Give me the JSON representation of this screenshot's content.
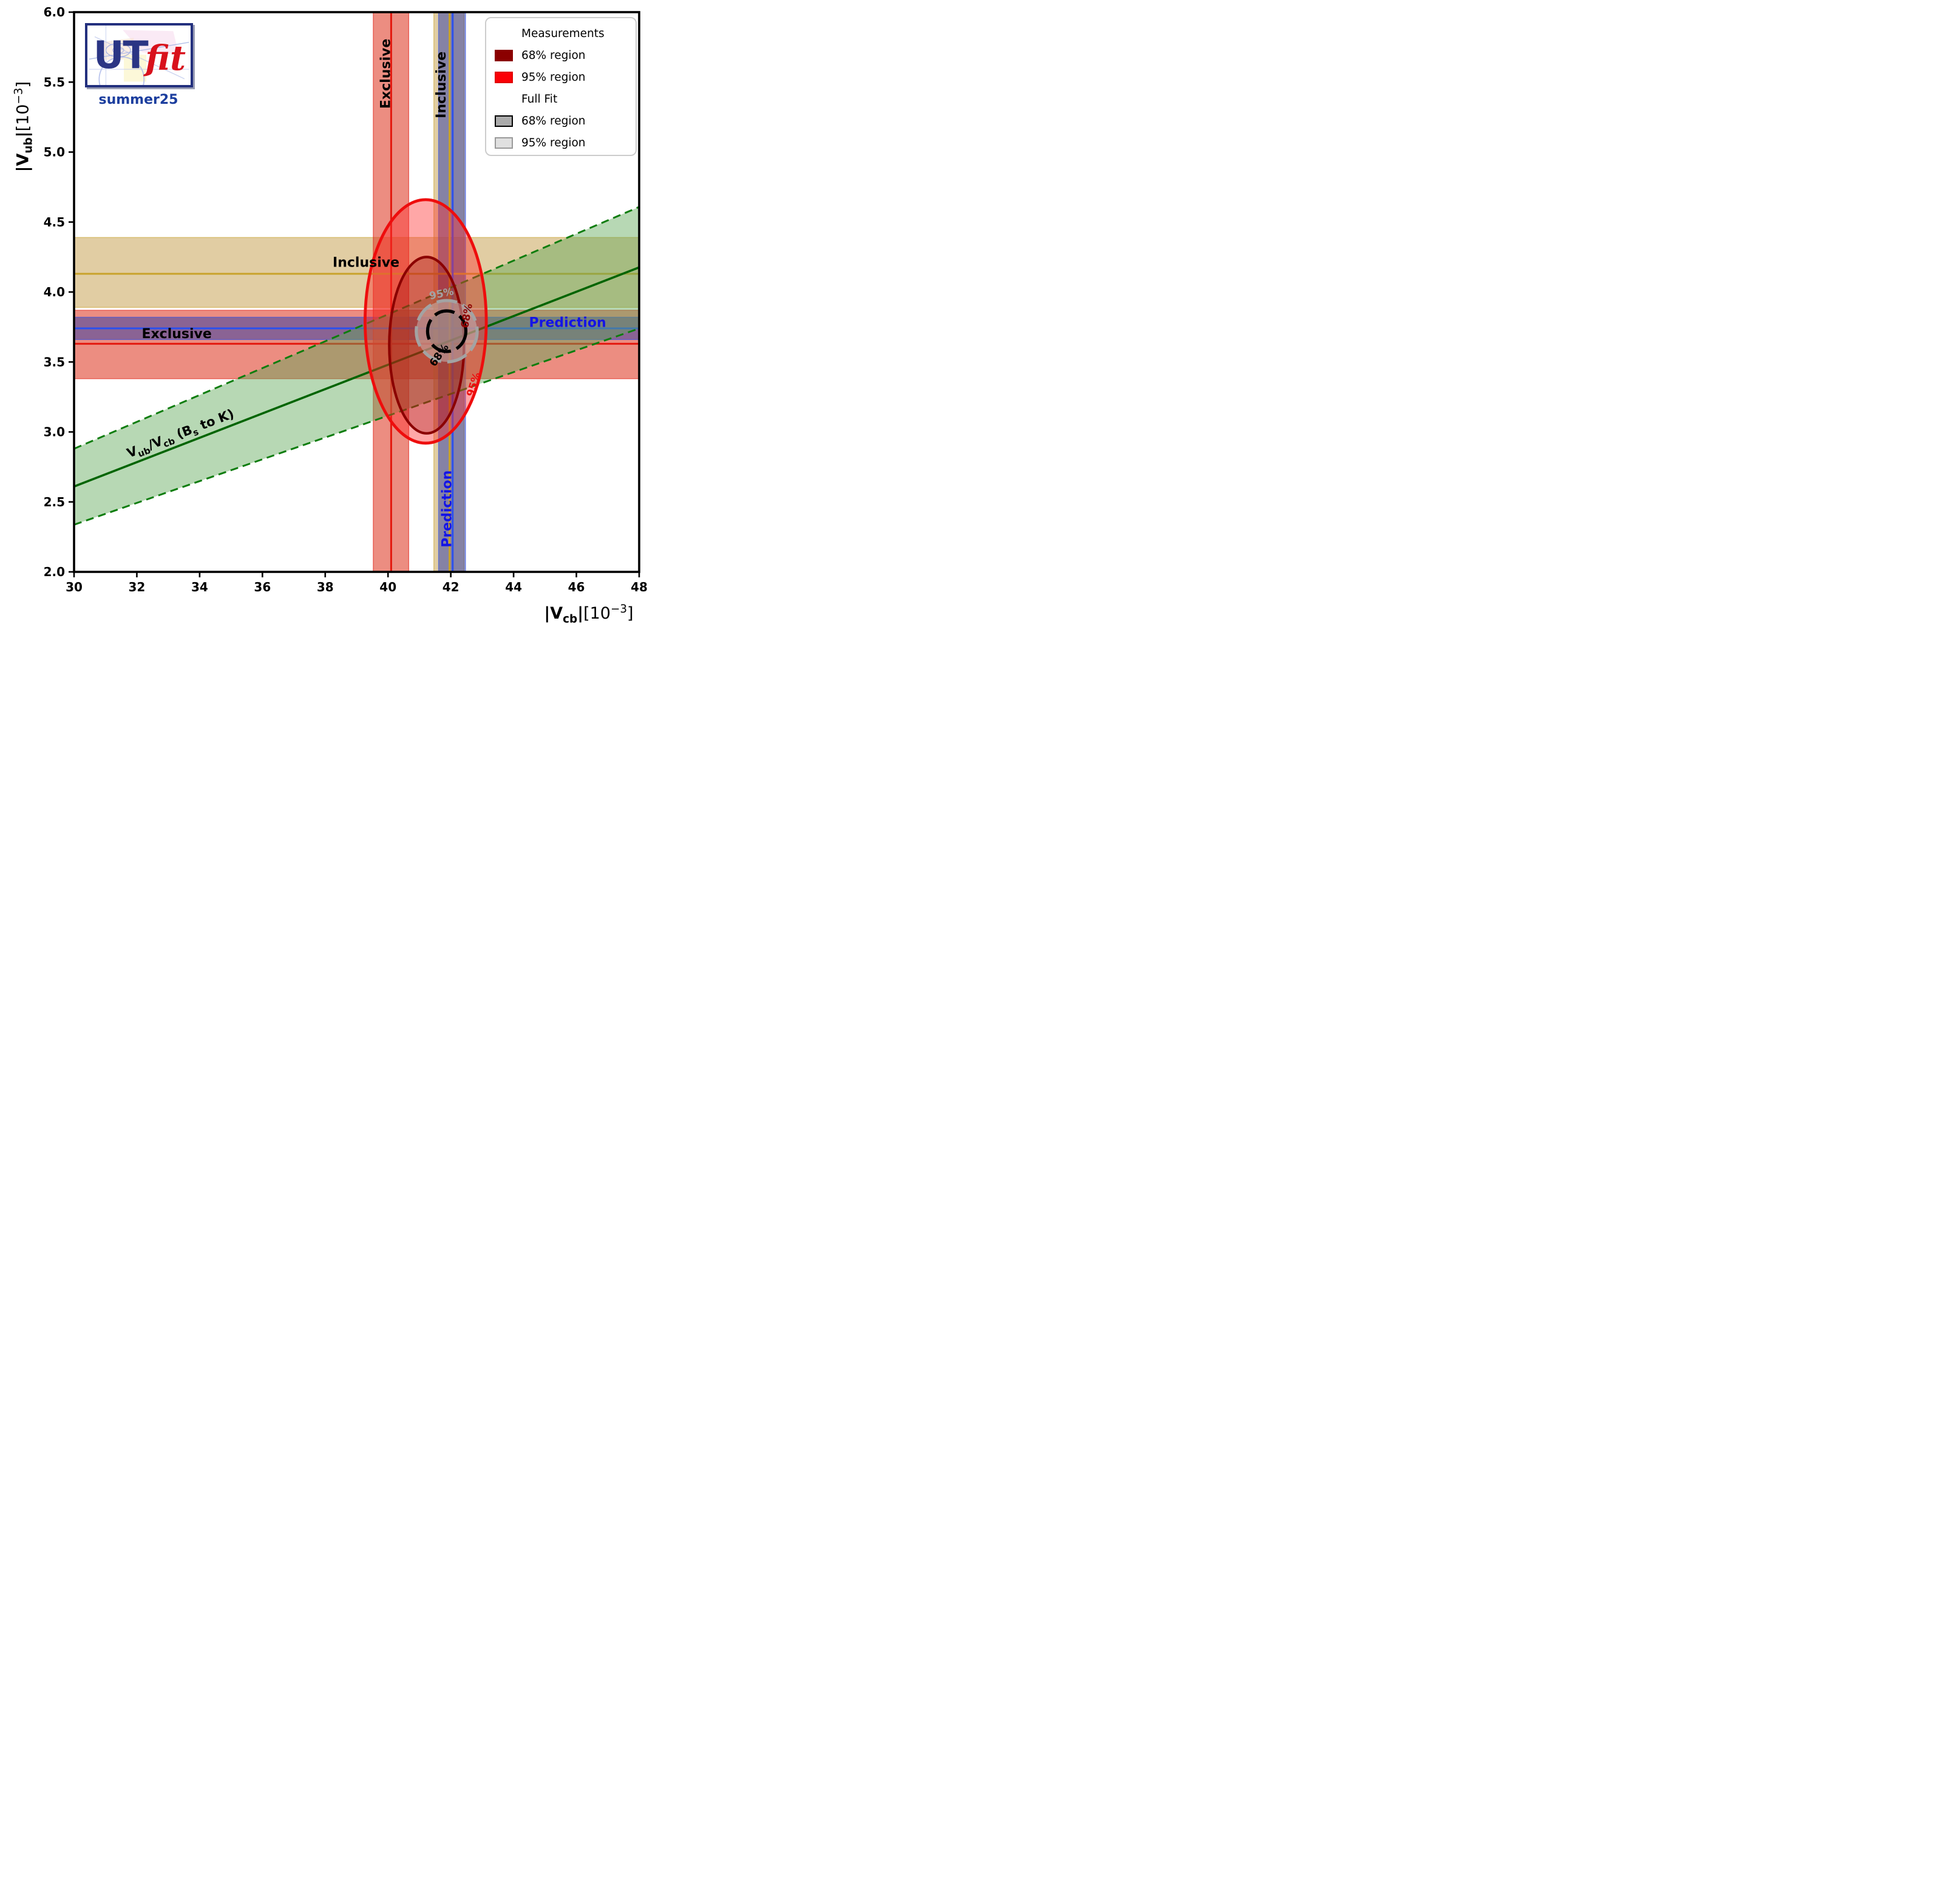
{
  "branding": {
    "logo_ut": "UT",
    "logo_fit": "fit",
    "edition": "summer25"
  },
  "legend": {
    "sections": [
      {
        "title": "Measurements",
        "items": [
          {
            "label": "68% region",
            "fill": "#8b0000",
            "border": "#8b0000"
          },
          {
            "label": "95% region",
            "fill": "#fb0006",
            "border": "#e00000"
          }
        ]
      },
      {
        "title": "Full Fit",
        "items": [
          {
            "label": "68% region",
            "fill": "#ababab",
            "border": "#000000"
          },
          {
            "label": "95% region",
            "fill": "#e0e0e0",
            "border": "#9a9a9a"
          }
        ]
      }
    ]
  },
  "x_axis_label": {
    "bar1": "|",
    "v": "V",
    "sub": "cb",
    "bar2": "|",
    "bracket": "[10",
    "sup": "−3",
    "close": "]"
  },
  "y_axis_label": {
    "bar1": "|",
    "v": "V",
    "sub": "ub",
    "bar2": "|",
    "bracket": "[10",
    "sup": "−3",
    "close": "]"
  },
  "chart_data": {
    "type": "area",
    "description": "2D confidence regions in the |Vcb|-|Vub| plane (UTfit summer25): measurement bands, ratio band and fit contours",
    "xlabel": "|Vcb|[10^-3]",
    "ylabel": "|Vub|[10^-3]",
    "x_range": [
      30,
      48
    ],
    "y_range": [
      2.0,
      6.0
    ],
    "x_ticks": [
      30,
      32,
      34,
      36,
      38,
      40,
      42,
      44,
      46,
      48
    ],
    "y_ticks": [
      "2.0",
      "2.5",
      "3.0",
      "3.5",
      "4.0",
      "4.5",
      "5.0",
      "5.5",
      "6.0"
    ],
    "grid": false,
    "legend_position": "upper right",
    "horizontal_bands": [
      {
        "name": "inclusive-vub",
        "label": "Inclusive",
        "lo": 3.89,
        "hi": 4.39,
        "center": 4.13,
        "fill": "rgba(196,156,72,0.50)",
        "line": "#c9a22b"
      },
      {
        "name": "exclusive-vub",
        "label": "Exclusive",
        "lo": 3.38,
        "hi": 3.87,
        "center": 3.63,
        "fill": "rgba(222,58,38,0.58)",
        "line": "#e3170d"
      },
      {
        "name": "prediction-vub",
        "label": "Prediction",
        "lo": 3.66,
        "hi": 3.82,
        "center": 3.74,
        "fill": "rgba(48,62,166,0.52)",
        "line": "#2b50ee"
      }
    ],
    "vertical_bands": [
      {
        "name": "exclusive-vcb",
        "label": "Exclusive",
        "lo": 39.53,
        "hi": 40.66,
        "center": 40.1,
        "fill": "rgba(222,58,38,0.58)",
        "line": "#e3170d"
      },
      {
        "name": "inclusive-vcb",
        "label": "Inclusive",
        "lo": 41.46,
        "hi": 42.42,
        "center": 41.96,
        "fill": "rgba(196,156,72,0.50)",
        "line": "#c9a22b"
      },
      {
        "name": "prediction-vcb",
        "label": "Prediction",
        "lo": 41.61,
        "hi": 42.47,
        "center": 42.06,
        "fill": "rgba(48,62,166,0.52)",
        "line": "#2b50ee"
      }
    ],
    "ratio_band": {
      "name": "vub-over-vcb-bs-to-k",
      "slope_center": 0.087,
      "slope_lo": 0.0779,
      "slope_hi": 0.096,
      "fill": "rgba(96,168,88,0.45)",
      "center_line": "#006400",
      "dashed_line": "#0e7d0e"
    },
    "ratio_label": {
      "v1": "V",
      "s1": "ub",
      "mid": "/V",
      "s2": "cb",
      "p1": " (B",
      "s3": "s",
      "p2": " to K)",
      "x": 33.4,
      "y": 2.98,
      "rot": -21
    },
    "measurement_ellipses": [
      {
        "level": "95%",
        "cx": 41.2,
        "cy": 3.79,
        "rx": 1.93,
        "ry": 0.87,
        "stroke": "#ee0d0d",
        "stroke_w": 4.8,
        "fill": "rgba(255,45,45,0.42)"
      },
      {
        "level": "68%",
        "cx": 41.23,
        "cy": 3.62,
        "rx": 1.19,
        "ry": 0.63,
        "stroke": "#8b0000",
        "stroke_w": 4.2,
        "fill": "rgba(139,0,0,0.28)"
      }
    ],
    "full_fit_regions": [
      {
        "level": "95%",
        "cx": 41.87,
        "cy": 3.72,
        "rx": 0.97,
        "ry": 0.219,
        "stroke": "#a3a3a3",
        "stroke_w": 5.2,
        "fill": "rgba(205,205,205,0.45)"
      },
      {
        "level": "68%",
        "cx": 41.87,
        "cy": 3.72,
        "rx": 0.61,
        "ry": 0.145,
        "stroke": "#000000",
        "stroke_w": 5.2,
        "fill": "rgba(120,120,120,0.30)"
      }
    ],
    "contour_labels": [
      {
        "text": "95%",
        "x": 41.7,
        "y": 3.99,
        "rot": -12,
        "color": "#a3a3a3"
      },
      {
        "text": "68%",
        "x": 41.62,
        "y": 3.55,
        "rot": -55,
        "color": "#000000"
      },
      {
        "text": "68%",
        "x": 42.5,
        "y": 3.83,
        "rot": -80,
        "color": "#8b0000"
      },
      {
        "text": "95%",
        "x": 42.72,
        "y": 3.34,
        "rot": -73,
        "color": "#ee0d0d"
      }
    ],
    "band_labels": [
      {
        "name": "exclusive-vcb-label",
        "text": "Exclusive",
        "x": 39.93,
        "y": 5.56,
        "rot": -90,
        "color": "#000000"
      },
      {
        "name": "inclusive-vcb-label",
        "text": "Inclusive",
        "x": 41.7,
        "y": 5.48,
        "rot": -90,
        "color": "#000000"
      },
      {
        "name": "inclusive-vub-label",
        "text": "Inclusive",
        "x": 39.3,
        "y": 4.21,
        "rot": 0,
        "color": "#000000"
      },
      {
        "name": "exclusive-vub-label",
        "text": "Exclusive",
        "x": 33.27,
        "y": 3.7,
        "rot": 0,
        "color": "#000000"
      },
      {
        "name": "prediction-vub-label",
        "text": "Prediction",
        "x": 45.72,
        "y": 3.78,
        "rot": 0,
        "color": "#1414e6"
      },
      {
        "name": "prediction-vcb-label",
        "text": "Prediction",
        "x": 41.88,
        "y": 2.45,
        "rot": -90,
        "color": "#1414e6"
      }
    ]
  }
}
